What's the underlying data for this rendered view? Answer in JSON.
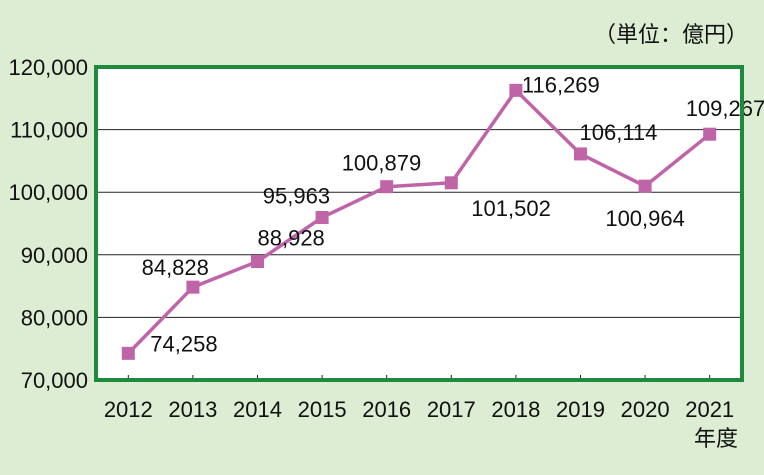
{
  "chart_data": {
    "type": "line",
    "unit_label": "（単位：億円）",
    "xlabel": "年度",
    "ylabel": "",
    "categories": [
      "2012",
      "2013",
      "2014",
      "2015",
      "2016",
      "2017",
      "2018",
      "2019",
      "2020",
      "2021"
    ],
    "series": [
      {
        "values": [
          74258,
          84828,
          88928,
          95963,
          100879,
          101502,
          116269,
          106114,
          100964,
          109267
        ],
        "data_labels": [
          "74,258",
          "84,828",
          "88,928",
          "95,963",
          "100,879",
          "101,502",
          "116,269",
          "106,114",
          "100,964",
          "109,267"
        ]
      }
    ],
    "ylim": [
      70000,
      120000
    ],
    "y_ticks": [
      70000,
      80000,
      90000,
      100000,
      110000,
      120000
    ],
    "y_tick_labels": [
      "70,000",
      "80,000",
      "90,000",
      "100,000",
      "110,000",
      "120,000"
    ],
    "grid": true,
    "colors": {
      "background": "#ddedd3",
      "frame": "#1e8a3c",
      "line": "#c064a8",
      "marker": "#c064a8",
      "grid": "#222222",
      "text": "#111111"
    }
  }
}
